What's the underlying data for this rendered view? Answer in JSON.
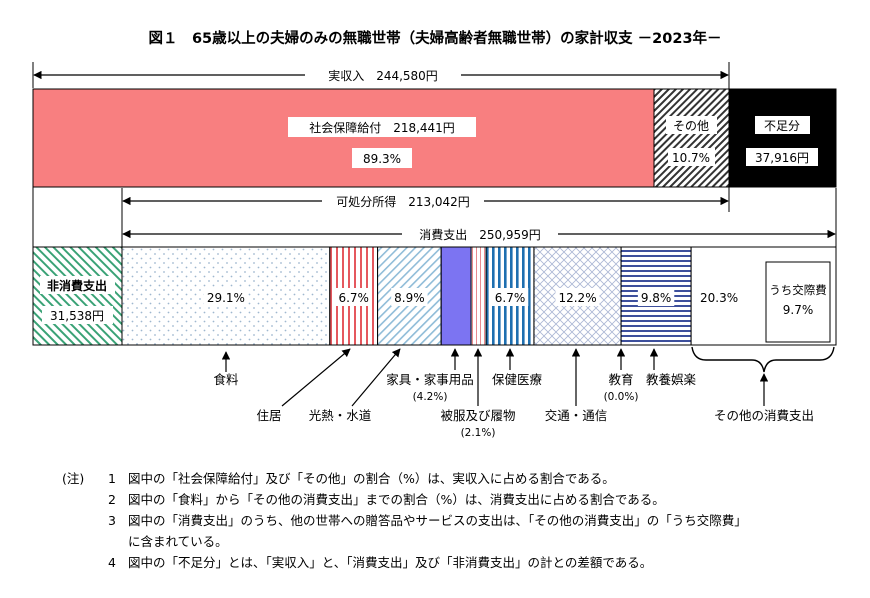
{
  "title": "図１　65歳以上の夫婦のみの無職世帯（夫婦高齢者無職世帯）の家計収支 －2023年－",
  "colors": {
    "social_security": "#f87f80",
    "deficit": "#000000",
    "clothing": "#7c74f2",
    "leisure": "#3d4f9c",
    "utilities": "#e5585e",
    "medical": "#1e6fb0",
    "food": "#9fb8cf",
    "furniture": "#8fbcd8",
    "transport": "#aab6d4",
    "nonconsumption": "#3aa276"
  },
  "chart_data": {
    "type": "bar",
    "unit": "円",
    "income_row": {
      "total_label": "実収入　244,580円",
      "total": 244580,
      "segments": [
        {
          "key": "social_security",
          "label": "社会保障給付　218,441円",
          "value": 218441,
          "pct_label": "89.3%",
          "pattern": "solid"
        },
        {
          "key": "other_income",
          "label": "その他",
          "value": 26139,
          "pct_label": "10.7%",
          "pattern": "hatch"
        },
        {
          "key": "deficit",
          "label": "不足分",
          "value": 37916,
          "value_label": "37,916円",
          "pattern": "black"
        }
      ]
    },
    "disposable_label": "可処分所得　213,042円",
    "disposable": 213042,
    "consumption_label": "消費支出　250,959円",
    "consumption": 250959,
    "nonconsumption": {
      "label": "非消費支出",
      "value": 31538,
      "value_label": "31,538円"
    },
    "categories": [
      {
        "key": "food",
        "label": "食料",
        "pct": 29.1,
        "pct_label": "29.1%",
        "pattern": "dots"
      },
      {
        "key": "housing",
        "label": "住居",
        "pct": 6.7,
        "pct_label": "6.7%",
        "pattern": "vstripe-red"
      },
      {
        "key": "utilities",
        "label": "光熱・水道",
        "pct": 8.9,
        "pct_label": "8.9%",
        "pattern": "diag-blue"
      },
      {
        "key": "furniture",
        "label": "家具・家事用品",
        "sub": "(4.2%)",
        "pct": 4.2,
        "pattern": "solid-violet"
      },
      {
        "key": "clothing",
        "label": "被服及び履物",
        "sub": "(2.1%)",
        "pct": 2.1,
        "pattern": "thin-red"
      },
      {
        "key": "medical",
        "label": "保健医療",
        "pct": 6.7,
        "pct_label": "6.7%",
        "pattern": "vstripe-blue"
      },
      {
        "key": "transport",
        "label": "交通・通信",
        "pct": 12.2,
        "pct_label": "12.2%",
        "pattern": "cross"
      },
      {
        "key": "education",
        "label": "教育",
        "sub": "(0.0%)",
        "pct": 0.0,
        "pattern": "none"
      },
      {
        "key": "leisure",
        "label": "教養娯楽",
        "pct": 9.8,
        "pct_label": "9.8%",
        "pattern": "hstripe"
      },
      {
        "key": "other",
        "label": "その他の消費支出",
        "pct": 20.3,
        "pct_label": "20.3%",
        "pattern": "white"
      }
    ],
    "socializing": {
      "label": "うち交際費",
      "pct_label": "9.7%",
      "pct": 9.7
    }
  },
  "notes": {
    "heading": "(注)",
    "items": [
      {
        "num": "1",
        "text": "図中の「社会保障給付」及び「その他」の割合（%）は、実収入に占める割合である。"
      },
      {
        "num": "2",
        "text": "図中の「食料」から「その他の消費支出」までの割合（%）は、消費支出に占める割合である。"
      },
      {
        "num": "3",
        "text": "図中の「消費支出」のうち、他の世帯への贈答品やサービスの支出は、「その他の消費支出」の「うち交際費」"
      },
      {
        "num": "",
        "text": "に含まれている。"
      },
      {
        "num": "4",
        "text": "図中の「不足分」とは、「実収入」と、「消費支出」及び「非消費支出」の計との差額である。"
      }
    ]
  }
}
